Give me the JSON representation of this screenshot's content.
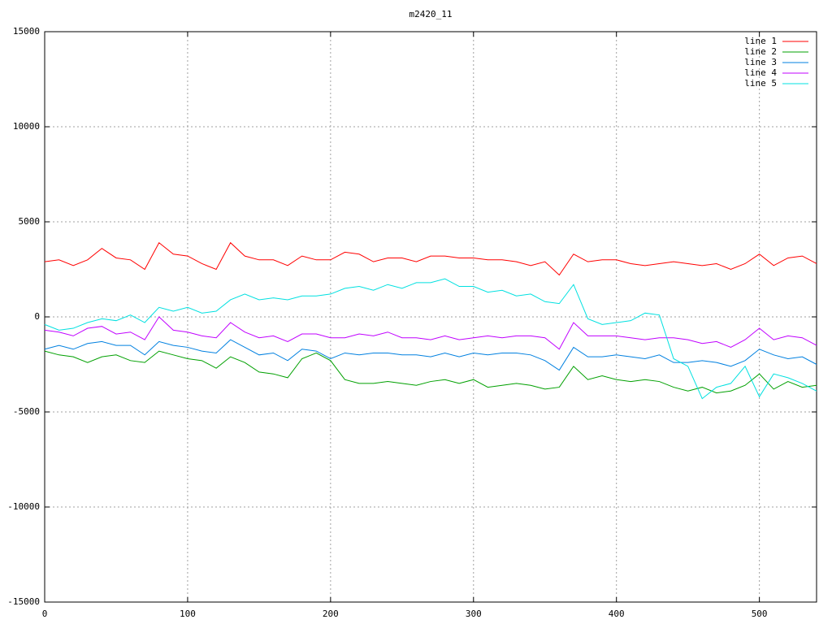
{
  "chart_data": {
    "type": "line",
    "title": "m2420_11",
    "x": [
      0,
      10,
      20,
      30,
      40,
      50,
      60,
      70,
      80,
      90,
      100,
      110,
      120,
      130,
      140,
      150,
      160,
      170,
      180,
      190,
      200,
      210,
      220,
      230,
      240,
      250,
      260,
      270,
      280,
      290,
      300,
      310,
      320,
      330,
      340,
      350,
      360,
      370,
      380,
      390,
      400,
      410,
      420,
      430,
      440,
      450,
      460,
      470,
      480,
      490,
      500,
      510,
      520,
      530,
      540
    ],
    "xlim": [
      0,
      540
    ],
    "xticks": [
      0,
      100,
      200,
      300,
      400,
      500
    ],
    "ylim": [
      -15000,
      15000
    ],
    "yticks": [
      -15000,
      -10000,
      -5000,
      0,
      5000,
      10000,
      15000
    ],
    "grid": true,
    "legend": "top-right",
    "series": [
      {
        "name": "line 1",
        "color": "#ff0000",
        "values": [
          2900,
          3000,
          2700,
          3000,
          3600,
          3100,
          3000,
          2500,
          3900,
          3300,
          3200,
          2800,
          2500,
          3900,
          3200,
          3000,
          3000,
          2700,
          3200,
          3000,
          3000,
          3400,
          3300,
          2900,
          3100,
          3100,
          2900,
          3200,
          3200,
          3100,
          3100,
          3000,
          3000,
          2900,
          2700,
          2900,
          2200,
          3300,
          2900,
          3000,
          3000,
          2800,
          2700,
          2800,
          2900,
          2800,
          2700,
          2800,
          2500,
          2800,
          3300,
          2700,
          3100,
          3200,
          2800
        ]
      },
      {
        "name": "line 2",
        "color": "#00a000",
        "values": [
          -1800,
          -2000,
          -2100,
          -2400,
          -2100,
          -2000,
          -2300,
          -2400,
          -1800,
          -2000,
          -2200,
          -2300,
          -2700,
          -2100,
          -2400,
          -2900,
          -3000,
          -3200,
          -2200,
          -1900,
          -2300,
          -3300,
          -3500,
          -3500,
          -3400,
          -3500,
          -3600,
          -3400,
          -3300,
          -3500,
          -3300,
          -3700,
          -3600,
          -3500,
          -3600,
          -3800,
          -3700,
          -2600,
          -3300,
          -3100,
          -3300,
          -3400,
          -3300,
          -3400,
          -3700,
          -3900,
          -3700,
          -4000,
          -3900,
          -3600,
          -3000,
          -3800,
          -3400,
          -3700,
          -3600
        ]
      },
      {
        "name": "line 3",
        "color": "#0080e0",
        "values": [
          -1700,
          -1500,
          -1700,
          -1400,
          -1300,
          -1500,
          -1500,
          -2000,
          -1300,
          -1500,
          -1600,
          -1800,
          -1900,
          -1200,
          -1600,
          -2000,
          -1900,
          -2300,
          -1700,
          -1800,
          -2200,
          -1900,
          -2000,
          -1900,
          -1900,
          -2000,
          -2000,
          -2100,
          -1900,
          -2100,
          -1900,
          -2000,
          -1900,
          -1900,
          -2000,
          -2300,
          -2800,
          -1600,
          -2100,
          -2100,
          -2000,
          -2100,
          -2200,
          -2000,
          -2400,
          -2400,
          -2300,
          -2400,
          -2600,
          -2300,
          -1700,
          -2000,
          -2200,
          -2100,
          -2500
        ]
      },
      {
        "name": "line 4",
        "color": "#c000ff",
        "values": [
          -700,
          -800,
          -1000,
          -600,
          -500,
          -900,
          -800,
          -1200,
          0,
          -700,
          -800,
          -1000,
          -1100,
          -300,
          -800,
          -1100,
          -1000,
          -1300,
          -900,
          -900,
          -1100,
          -1100,
          -900,
          -1000,
          -800,
          -1100,
          -1100,
          -1200,
          -1000,
          -1200,
          -1100,
          -1000,
          -1100,
          -1000,
          -1000,
          -1100,
          -1700,
          -300,
          -1000,
          -1000,
          -1000,
          -1100,
          -1200,
          -1100,
          -1100,
          -1200,
          -1400,
          -1300,
          -1600,
          -1200,
          -600,
          -1200,
          -1000,
          -1100,
          -1500
        ]
      },
      {
        "name": "line 5",
        "color": "#00e0e0",
        "values": [
          -400,
          -700,
          -600,
          -300,
          -100,
          -200,
          100,
          -300,
          500,
          300,
          500,
          200,
          300,
          900,
          1200,
          900,
          1000,
          900,
          1100,
          1100,
          1200,
          1500,
          1600,
          1400,
          1700,
          1500,
          1800,
          1800,
          2000,
          1600,
          1600,
          1300,
          1400,
          1100,
          1200,
          800,
          700,
          1700,
          -100,
          -400,
          -300,
          -200,
          200,
          100,
          -2200,
          -2600,
          -4300,
          -3700,
          -3500,
          -2600,
          -4200,
          -3000,
          -3200,
          -3500,
          -3900
        ]
      }
    ]
  }
}
